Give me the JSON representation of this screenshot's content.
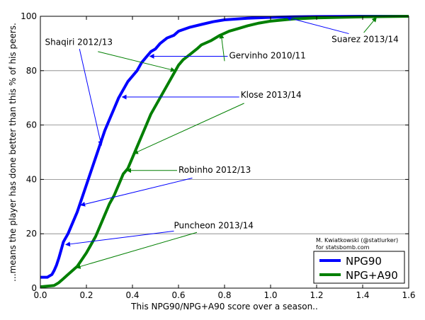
{
  "chart_data": {
    "type": "line",
    "title": "",
    "xlabel": "This NPG90/NPG+A90 score over a season..",
    "ylabel": "...means the player has done better than this % of his peers.",
    "xlim": [
      0,
      1.6
    ],
    "ylim": [
      0,
      100
    ],
    "xticks": [
      "0.0",
      "0.2",
      "0.4",
      "0.6",
      "0.8",
      "1.0",
      "1.2",
      "1.4",
      "1.6"
    ],
    "yticks": [
      "0",
      "20",
      "40",
      "60",
      "80",
      "100"
    ],
    "grid": "horizontal",
    "legend_position": "bottom-right",
    "credit": [
      "M. Kwiatkowski (@statlurker)",
      "for statsbomb.com"
    ],
    "colors": {
      "NPG90": "#0000ff",
      "NPG+A90": "#007f00"
    },
    "series": [
      {
        "name": "NPG90",
        "color": "#0000ff",
        "x": [
          0,
          0.03,
          0.04,
          0.05,
          0.06,
          0.07,
          0.08,
          0.09,
          0.1,
          0.12,
          0.14,
          0.16,
          0.18,
          0.2,
          0.22,
          0.24,
          0.26,
          0.28,
          0.3,
          0.32,
          0.34,
          0.36,
          0.38,
          0.4,
          0.42,
          0.44,
          0.46,
          0.48,
          0.5,
          0.52,
          0.55,
          0.58,
          0.6,
          0.65,
          0.7,
          0.75,
          0.8,
          0.9,
          1.0,
          1.1,
          1.2,
          1.3,
          1.4,
          1.5,
          1.6
        ],
        "y": [
          4,
          4,
          4.5,
          5,
          6.5,
          8.5,
          11,
          14,
          17,
          20,
          24,
          28,
          33,
          38,
          43,
          48,
          53,
          58,
          62,
          66,
          70,
          73,
          76,
          78,
          80,
          83,
          85,
          87,
          88,
          90,
          92,
          93,
          94.5,
          96,
          97,
          98,
          98.7,
          99.3,
          99.6,
          99.8,
          99.9,
          99.95,
          100,
          100,
          100
        ]
      },
      {
        "name": "NPG+A90",
        "color": "#007f00",
        "x": [
          0,
          0.06,
          0.08,
          0.1,
          0.12,
          0.14,
          0.16,
          0.18,
          0.2,
          0.22,
          0.24,
          0.26,
          0.28,
          0.3,
          0.32,
          0.34,
          0.36,
          0.38,
          0.4,
          0.42,
          0.44,
          0.46,
          0.48,
          0.5,
          0.52,
          0.54,
          0.56,
          0.58,
          0.6,
          0.62,
          0.65,
          0.68,
          0.7,
          0.74,
          0.78,
          0.82,
          0.86,
          0.9,
          0.95,
          1.0,
          1.1,
          1.2,
          1.3,
          1.4,
          1.5,
          1.6
        ],
        "y": [
          0.5,
          1,
          2,
          3.5,
          5,
          6.5,
          8,
          10.5,
          13,
          16,
          19,
          23,
          27,
          31,
          34,
          38,
          42,
          44,
          48,
          52,
          56,
          60,
          64,
          67,
          70,
          73,
          76,
          79,
          82,
          84,
          86,
          88,
          89.5,
          91,
          93,
          94.5,
          95.5,
          96.5,
          97.5,
          98.2,
          99,
          99.4,
          99.6,
          99.8,
          99.9,
          100
        ]
      }
    ],
    "annotations": [
      {
        "text": "Shaqiri 2012/13",
        "color": "#0000ff",
        "text_x": 0.02,
        "text_y": 89.5,
        "arrows": [
          {
            "color": "#0000ff",
            "from": [
              0.17,
              88
            ],
            "to": [
              0.265,
              52.5
            ]
          },
          {
            "color": "#007f00",
            "from": [
              0.25,
              87
            ],
            "to": [
              0.585,
              80
            ]
          }
        ]
      },
      {
        "text": "Gervinho 2010/11",
        "color": "#0000ff",
        "text_x": 0.82,
        "text_y": 84.5,
        "arrows": [
          {
            "color": "#0000ff",
            "from": [
              0.815,
              85.3
            ],
            "to": [
              0.475,
              85.3
            ]
          },
          {
            "color": "#007f00",
            "from": [
              0.8,
              83.5
            ],
            "to": [
              0.785,
              93.5
            ]
          }
        ]
      },
      {
        "text": "Klose 2013/14",
        "color": "#0000ff",
        "text_x": 0.87,
        "text_y": 70,
        "arrows": [
          {
            "color": "#0000ff",
            "from": [
              0.865,
              70.3
            ],
            "to": [
              0.355,
              70.3
            ]
          },
          {
            "color": "#007f00",
            "from": [
              0.885,
              68
            ],
            "to": [
              0.405,
              49.5
            ]
          }
        ]
      },
      {
        "text": "Robinho 2012/13",
        "color": "#0000ff",
        "text_x": 0.6,
        "text_y": 42.5,
        "arrows": [
          {
            "color": "#007f00",
            "from": [
              0.6,
              43.3
            ],
            "to": [
              0.375,
              43.3
            ]
          },
          {
            "color": "#0000ff",
            "from": [
              0.66,
              40.5
            ],
            "to": [
              0.175,
              30.5
            ]
          }
        ]
      },
      {
        "text": "Puncheon 2013/14",
        "color": "#0000ff",
        "text_x": 0.58,
        "text_y": 22,
        "arrows": [
          {
            "color": "#0000ff",
            "from": [
              0.58,
              21
            ],
            "to": [
              0.11,
              16
            ]
          },
          {
            "color": "#007f00",
            "from": [
              0.68,
              20.5
            ],
            "to": [
              0.155,
              7.5
            ]
          }
        ]
      },
      {
        "text": "Suarez 2013/14",
        "color": "#0000ff",
        "text_x": 1.265,
        "text_y": 90.5,
        "arrows": [
          {
            "color": "#0000ff",
            "from": [
              1.34,
              93.6
            ],
            "to": [
              1.07,
              99.6
            ]
          },
          {
            "color": "#007f00",
            "from": [
              1.405,
              94
            ],
            "to": [
              1.46,
              99.6
            ]
          }
        ]
      }
    ]
  }
}
